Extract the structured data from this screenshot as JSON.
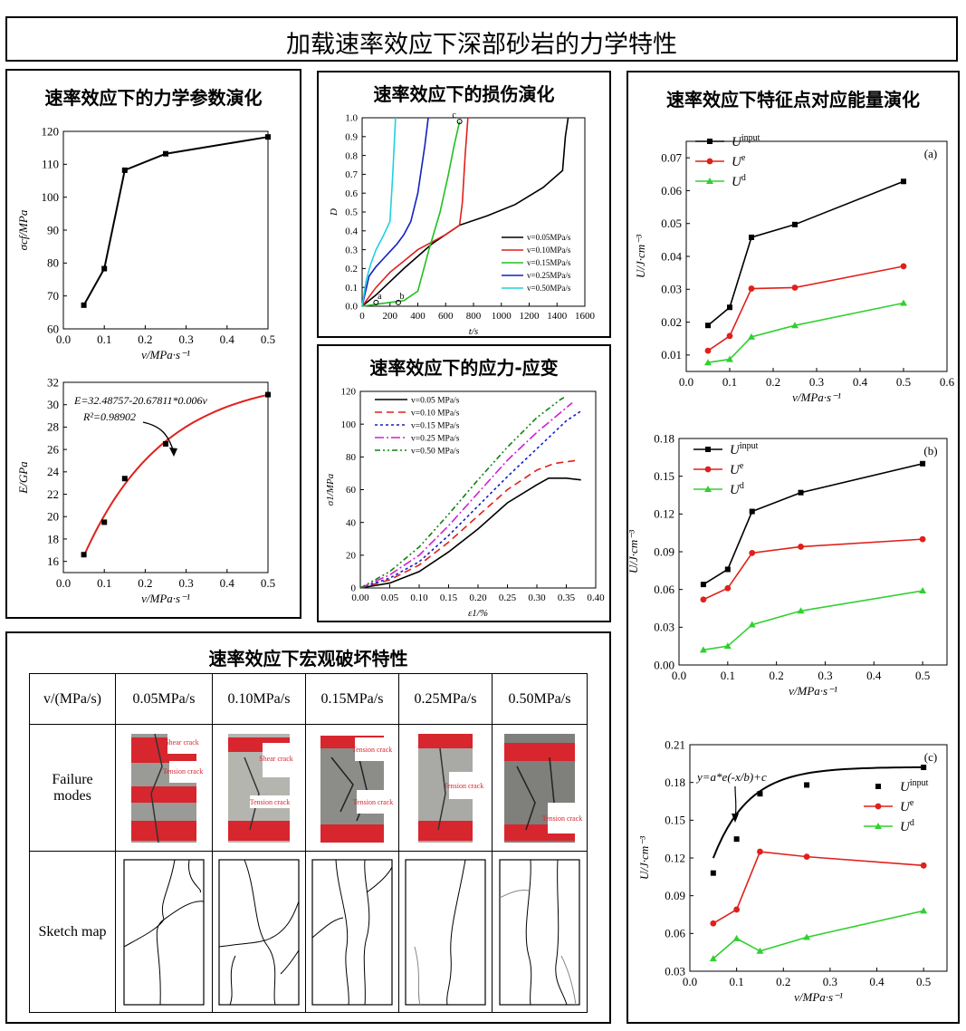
{
  "main_title": "加载速率效应下深部砂岩的力学特性",
  "panels": {
    "params_title": "速率效应下的力学参数演化",
    "damage_title": "速率效应下的损伤演化",
    "stress_title": "速率效应下的应力-应变",
    "energy_title": "速率效应下特征点对应能量演化",
    "failure_title": "速率效应下宏观破坏特性"
  },
  "chart_data": [
    {
      "id": "sigma_cf",
      "type": "line",
      "x": [
        0.05,
        0.1,
        0.15,
        0.25,
        0.5
      ],
      "y": [
        67.2,
        78.3,
        108.2,
        113.2,
        118.3
      ],
      "xlabel": "v/MPa·s⁻¹",
      "ylabel": "σcf/MPa",
      "xlim": [
        0.0,
        0.5
      ],
      "ylim": [
        60,
        120
      ],
      "xticks": [
        0.0,
        0.1,
        0.2,
        0.3,
        0.4,
        0.5
      ],
      "yticks": [
        60,
        70,
        80,
        90,
        100,
        110,
        120
      ]
    },
    {
      "id": "E_fit",
      "type": "scatter",
      "x": [
        0.05,
        0.1,
        0.15,
        0.25,
        0.5
      ],
      "y": [
        16.6,
        19.5,
        23.4,
        26.5,
        30.9
      ],
      "fit": {
        "formula": "E=32.48757-20.67811*0.006^v",
        "a": 32.48757,
        "b": 20.67811,
        "base": 0.006
      },
      "annotations": [
        "E=32.48757-20.67811*0.006v",
        "R²=0.98902"
      ],
      "xlabel": "v/MPa·s⁻¹",
      "ylabel": "E/GPa",
      "xlim": [
        0.0,
        0.5
      ],
      "ylim": [
        15,
        32
      ],
      "xticks": [
        0.0,
        0.1,
        0.2,
        0.3,
        0.4,
        0.5
      ],
      "yticks": [
        16,
        18,
        20,
        22,
        24,
        26,
        28,
        30,
        32
      ]
    },
    {
      "id": "damage",
      "type": "line",
      "xlabel": "t/s",
      "ylabel": "D",
      "xlim": [
        0,
        1600
      ],
      "ylim": [
        0,
        1.0
      ],
      "xticks": [
        0,
        200,
        400,
        600,
        800,
        1000,
        1200,
        1400,
        1600
      ],
      "yticks": [
        0.0,
        0.1,
        0.2,
        0.3,
        0.4,
        0.5,
        0.6,
        0.7,
        0.8,
        0.9,
        1.0
      ],
      "point_labels": [
        "a",
        "b",
        "c"
      ],
      "series": [
        {
          "name": "v=0.05MPa/s",
          "color": "#000000",
          "x": [
            0,
            100,
            200,
            300,
            500,
            700,
            900,
            1100,
            1300,
            1440,
            1460,
            1480
          ],
          "y": [
            0,
            0.06,
            0.13,
            0.2,
            0.33,
            0.43,
            0.48,
            0.54,
            0.63,
            0.72,
            0.9,
            1.0
          ]
        },
        {
          "name": "v=0.10MPa/s",
          "color": "#e0201b",
          "x": [
            0,
            100,
            200,
            300,
            400,
            500,
            600,
            700,
            720,
            740,
            760
          ],
          "y": [
            0,
            0.1,
            0.18,
            0.24,
            0.3,
            0.34,
            0.38,
            0.43,
            0.55,
            0.8,
            1.0
          ]
        },
        {
          "name": "v=0.15MPa/s",
          "color": "#20c020",
          "x": [
            0,
            100,
            200,
            300,
            400,
            480,
            560,
            620,
            660,
            700
          ],
          "y": [
            0,
            0.01,
            0.02,
            0.03,
            0.08,
            0.3,
            0.5,
            0.7,
            0.85,
            0.98
          ]
        },
        {
          "name": "v=0.25MPa/s",
          "color": "#1020c0",
          "x": [
            0,
            50,
            100,
            150,
            200,
            250,
            300,
            350,
            400,
            450,
            475
          ],
          "y": [
            0,
            0.16,
            0.21,
            0.25,
            0.29,
            0.33,
            0.38,
            0.45,
            0.6,
            0.85,
            1.0
          ]
        },
        {
          "name": "v=0.50MPa/s",
          "color": "#20d0e0",
          "x": [
            0,
            30,
            60,
            100,
            150,
            200,
            220,
            240
          ],
          "y": [
            0,
            0.14,
            0.22,
            0.3,
            0.37,
            0.45,
            0.7,
            1.0
          ]
        }
      ]
    },
    {
      "id": "stress_strain",
      "type": "line",
      "xlabel": "ε1/%",
      "ylabel": "σ1/MPa",
      "xlim": [
        0,
        0.4
      ],
      "ylim": [
        0,
        120
      ],
      "xticks": [
        0.0,
        0.05,
        0.1,
        0.15,
        0.2,
        0.25,
        0.3,
        0.35,
        0.4
      ],
      "yticks": [
        0,
        20,
        40,
        60,
        80,
        100,
        120
      ],
      "series": [
        {
          "name": "v=0.05 MPa/s",
          "color": "#000000",
          "dash": "",
          "x": [
            0,
            0.05,
            0.1,
            0.15,
            0.2,
            0.25,
            0.3,
            0.32,
            0.35,
            0.375
          ],
          "y": [
            0,
            3,
            10,
            22,
            36,
            52,
            63,
            67,
            67,
            66
          ]
        },
        {
          "name": "v=0.10 MPa/s",
          "color": "#e0201b",
          "dash": "8,5",
          "x": [
            0,
            0.05,
            0.1,
            0.15,
            0.2,
            0.25,
            0.3,
            0.33,
            0.37
          ],
          "y": [
            0,
            5,
            14,
            28,
            44,
            60,
            72,
            76,
            78
          ]
        },
        {
          "name": "v=0.15 MPa/s",
          "color": "#1020c0",
          "dash": "3,3",
          "x": [
            0,
            0.05,
            0.1,
            0.15,
            0.2,
            0.25,
            0.3,
            0.35,
            0.375
          ],
          "y": [
            0,
            6,
            16,
            32,
            50,
            68,
            85,
            102,
            108
          ]
        },
        {
          "name": "v=0.25 MPa/s",
          "color": "#d020d0",
          "dash": "10,3,2,3",
          "x": [
            0,
            0.05,
            0.1,
            0.15,
            0.2,
            0.25,
            0.3,
            0.35,
            0.36
          ],
          "y": [
            0,
            8,
            20,
            38,
            58,
            78,
            95,
            110,
            113
          ]
        },
        {
          "name": "v=0.50 MPa/s",
          "color": "#108010",
          "dash": "6,3,2,3,2,3",
          "x": [
            0,
            0.05,
            0.1,
            0.15,
            0.2,
            0.25,
            0.3,
            0.34,
            0.35
          ],
          "y": [
            0,
            10,
            25,
            45,
            66,
            86,
            104,
            115,
            117
          ]
        }
      ]
    },
    {
      "id": "energy_a",
      "type": "line",
      "panel_label": "(a)",
      "xlabel": "v/MPa·s⁻¹",
      "ylabel": "U/J·cm⁻³",
      "xlim": [
        0.0,
        0.6
      ],
      "ylim": [
        0.005,
        0.075
      ],
      "xticks": [
        0.0,
        0.1,
        0.2,
        0.3,
        0.4,
        0.5,
        0.6
      ],
      "yticks": [
        0.01,
        0.02,
        0.03,
        0.04,
        0.05,
        0.06,
        0.07
      ],
      "x": [
        0.05,
        0.1,
        0.15,
        0.25,
        0.5
      ],
      "series": [
        {
          "name": "U",
          "sup": "input",
          "color": "#000000",
          "marker": "square",
          "y": [
            0.019,
            0.0245,
            0.0458,
            0.0497,
            0.0628
          ]
        },
        {
          "name": "U",
          "sup": "e",
          "color": "#e0201b",
          "marker": "circle",
          "y": [
            0.0113,
            0.0158,
            0.0302,
            0.0305,
            0.037
          ]
        },
        {
          "name": "U",
          "sup": "d",
          "color": "#30d030",
          "marker": "triangle",
          "y": [
            0.0077,
            0.0087,
            0.0155,
            0.019,
            0.0258
          ]
        }
      ]
    },
    {
      "id": "energy_b",
      "type": "line",
      "panel_label": "(b)",
      "xlabel": "v/MPa·s⁻¹",
      "ylabel": "U/J·cm⁻³",
      "xlim": [
        0.0,
        0.55
      ],
      "ylim": [
        0.0,
        0.18
      ],
      "xticks": [
        0.0,
        0.1,
        0.2,
        0.3,
        0.4,
        0.5
      ],
      "yticks": [
        0.0,
        0.03,
        0.06,
        0.09,
        0.12,
        0.15,
        0.18
      ],
      "x": [
        0.05,
        0.1,
        0.15,
        0.25,
        0.5
      ],
      "series": [
        {
          "name": "U",
          "sup": "input",
          "color": "#000000",
          "marker": "square",
          "y": [
            0.064,
            0.076,
            0.122,
            0.137,
            0.16
          ]
        },
        {
          "name": "U",
          "sup": "e",
          "color": "#e0201b",
          "marker": "circle",
          "y": [
            0.052,
            0.061,
            0.089,
            0.094,
            0.1
          ]
        },
        {
          "name": "U",
          "sup": "d",
          "color": "#30d030",
          "marker": "triangle",
          "y": [
            0.012,
            0.015,
            0.032,
            0.043,
            0.059
          ]
        }
      ]
    },
    {
      "id": "energy_c",
      "type": "line",
      "panel_label": "(c)",
      "xlabel": "v/MPa·s⁻¹",
      "ylabel": "U/J·cm⁻³",
      "xlim": [
        0.0,
        0.55
      ],
      "ylim": [
        0.03,
        0.21
      ],
      "xticks": [
        0.0,
        0.1,
        0.2,
        0.3,
        0.4,
        0.5
      ],
      "yticks": [
        0.03,
        0.06,
        0.09,
        0.12,
        0.15,
        0.18,
        0.21
      ],
      "fit_label": "y=a*e(-x/b)+c",
      "x": [
        0.05,
        0.1,
        0.15,
        0.25,
        0.5
      ],
      "series": [
        {
          "name": "U",
          "sup": "input",
          "color": "#000000",
          "marker": "square",
          "y": [
            0.108,
            0.135,
            0.171,
            0.178,
            0.192
          ],
          "fit": {
            "a": -0.1405,
            "b": 0.0754,
            "c": 0.1923
          }
        },
        {
          "name": "U",
          "sup": "e",
          "color": "#e0201b",
          "marker": "circle",
          "y": [
            0.068,
            0.079,
            0.125,
            0.121,
            0.114
          ]
        },
        {
          "name": "U",
          "sup": "d",
          "color": "#30d030",
          "marker": "triangle",
          "y": [
            0.04,
            0.056,
            0.046,
            0.057,
            0.078
          ]
        }
      ]
    }
  ],
  "failure_table": {
    "header_first": "v/(MPa/s)",
    "rates": [
      "0.05MPa/s",
      "0.10MPa/s",
      "0.15MPa/s",
      "0.25MPa/s",
      "0.50MPa/s"
    ],
    "row_failure": "Failure modes",
    "row_sketch": "Sketch map",
    "photo_labels": [
      [
        "Shear crack",
        "Tension crack"
      ],
      [
        "Shear crack",
        "Tension crack"
      ],
      [
        "Tension crack",
        "Tension crack"
      ],
      [
        "Tension crack"
      ],
      [
        "Tension crack"
      ]
    ]
  }
}
